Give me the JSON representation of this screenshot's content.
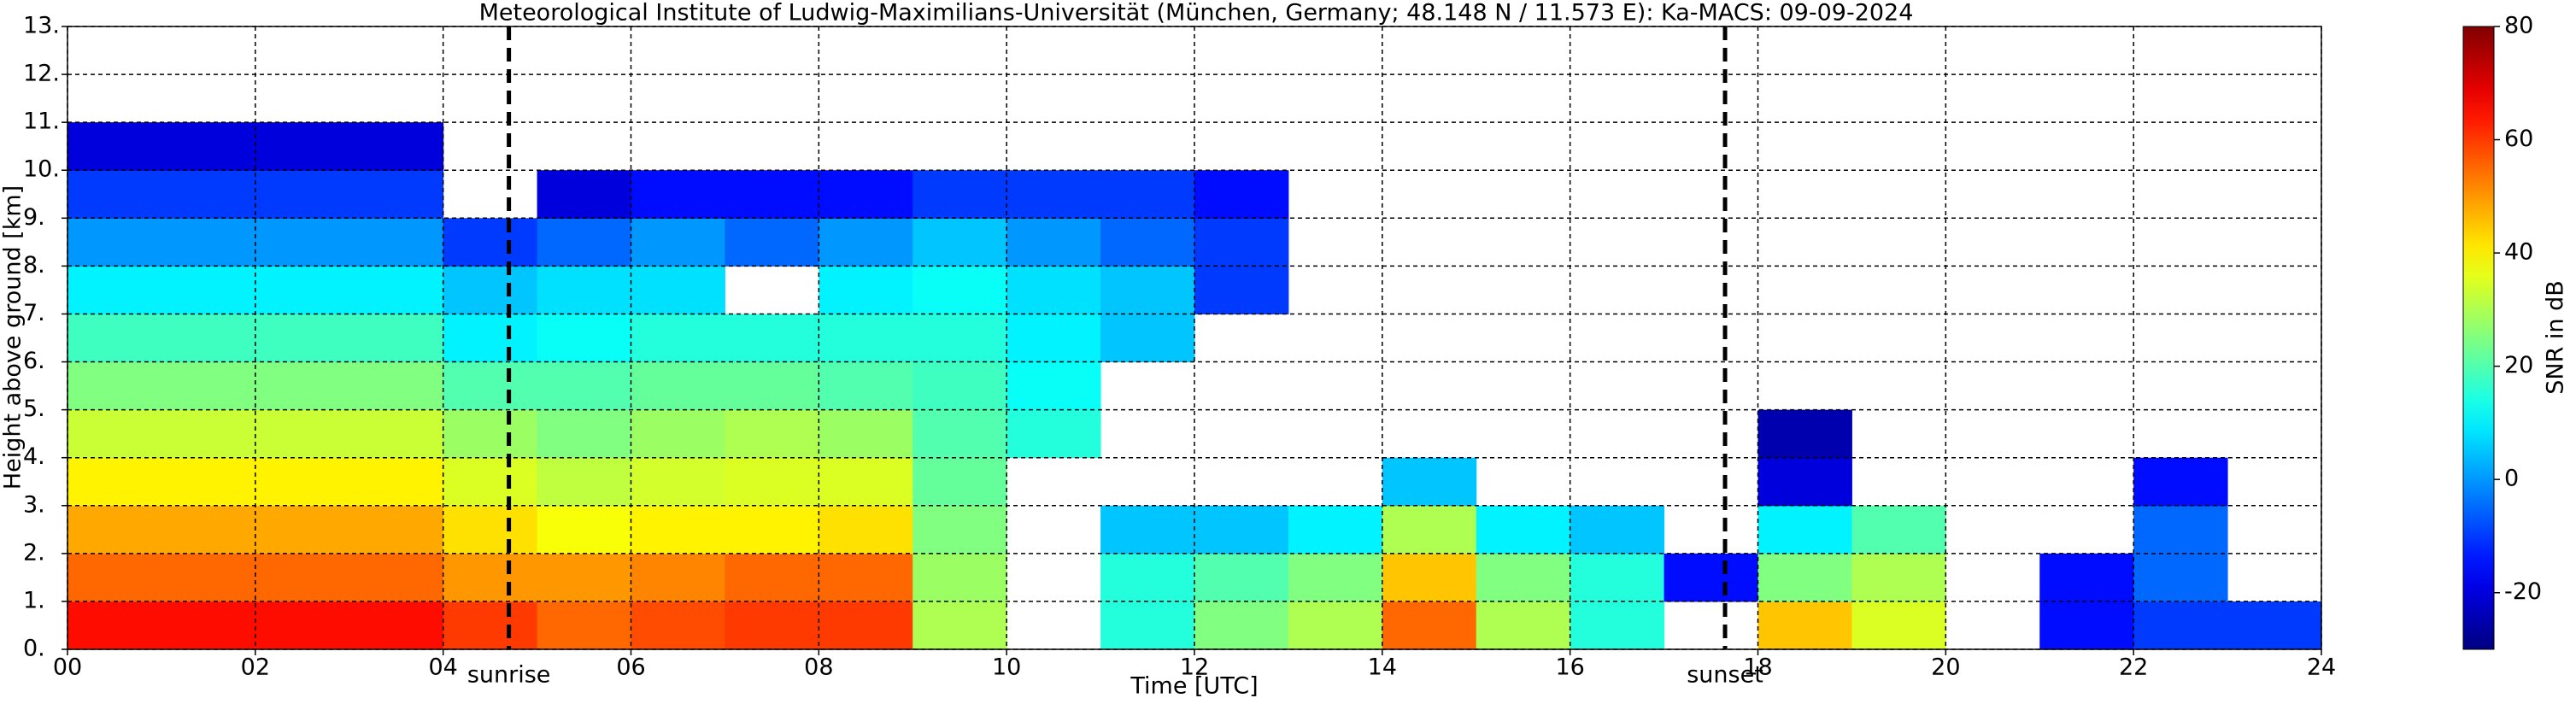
{
  "chart_data": {
    "type": "heatmap",
    "title": "Meteorological Institute of Ludwig-Maximilians-Universität (München, Germany; 48.148 N / 11.573 E):    Ka-MACS: 09-09-2024",
    "x_label": "Time [UTC]",
    "y_label": "Height above ground [km]",
    "colorbar_label": "SNR in dB",
    "colormap": "jet",
    "grid": true,
    "xbins": [
      0,
      1,
      2,
      3,
      4,
      5,
      6,
      7,
      8,
      9,
      10,
      11,
      12,
      13,
      14,
      15,
      16,
      17,
      18,
      19,
      20,
      21,
      22,
      23,
      24
    ],
    "ybins": [
      0,
      1,
      2,
      3,
      4,
      5,
      6,
      7,
      8,
      9,
      10,
      11,
      12,
      13
    ],
    "values": [
      [
        65,
        55,
        48,
        40,
        33,
        25,
        18,
        10,
        0,
        -10,
        -20,
        null,
        null
      ],
      [
        65,
        55,
        48,
        40,
        33,
        25,
        18,
        10,
        0,
        -10,
        -20,
        null,
        null
      ],
      [
        65,
        55,
        48,
        40,
        33,
        25,
        18,
        10,
        0,
        -10,
        -20,
        null,
        null
      ],
      [
        65,
        55,
        48,
        40,
        33,
        25,
        18,
        10,
        0,
        -10,
        -20,
        null,
        null
      ],
      [
        60,
        50,
        42,
        35,
        28,
        20,
        10,
        5,
        -10,
        null,
        null,
        null,
        null
      ],
      [
        55,
        50,
        38,
        32,
        25,
        20,
        12,
        8,
        -5,
        -20,
        null,
        null,
        null
      ],
      [
        58,
        52,
        40,
        34,
        28,
        22,
        15,
        8,
        0,
        -15,
        null,
        null,
        null
      ],
      [
        60,
        55,
        40,
        35,
        30,
        22,
        15,
        null,
        -5,
        -15,
        null,
        null,
        null
      ],
      [
        60,
        55,
        42,
        35,
        28,
        20,
        15,
        10,
        0,
        -15,
        null,
        null,
        null
      ],
      [
        30,
        28,
        25,
        22,
        20,
        18,
        15,
        12,
        5,
        -10,
        null,
        null,
        null
      ],
      [
        null,
        null,
        null,
        null,
        15,
        12,
        10,
        8,
        0,
        -10,
        null,
        null,
        null
      ],
      [
        15,
        15,
        5,
        null,
        null,
        null,
        5,
        5,
        -5,
        -10,
        null,
        null,
        null
      ],
      [
        25,
        20,
        5,
        null,
        null,
        null,
        null,
        -10,
        -10,
        -15,
        null,
        null,
        null
      ],
      [
        30,
        25,
        10,
        null,
        null,
        null,
        null,
        null,
        null,
        null,
        null,
        null,
        null
      ],
      [
        55,
        45,
        30,
        5,
        null,
        null,
        null,
        null,
        null,
        null,
        null,
        null,
        null
      ],
      [
        30,
        25,
        10,
        null,
        null,
        null,
        null,
        null,
        null,
        null,
        null,
        null,
        null
      ],
      [
        15,
        15,
        5,
        null,
        null,
        null,
        null,
        null,
        null,
        null,
        null,
        null,
        null
      ],
      [
        null,
        -15,
        null,
        null,
        null,
        null,
        null,
        null,
        null,
        null,
        null,
        null,
        null
      ],
      [
        45,
        25,
        10,
        -20,
        -25,
        null,
        null,
        null,
        null,
        null,
        null,
        null,
        null
      ],
      [
        35,
        30,
        20,
        null,
        null,
        null,
        null,
        null,
        null,
        null,
        null,
        null,
        null
      ],
      [
        null,
        null,
        null,
        null,
        null,
        null,
        null,
        null,
        null,
        null,
        null,
        null,
        null
      ],
      [
        -15,
        -15,
        null,
        null,
        null,
        null,
        null,
        null,
        null,
        null,
        null,
        null,
        null
      ],
      [
        -10,
        -5,
        -5,
        -15,
        null,
        null,
        null,
        null,
        null,
        null,
        null,
        null,
        null
      ],
      [
        -10,
        null,
        null,
        null,
        null,
        null,
        null,
        null,
        null,
        null,
        null,
        null,
        null
      ]
    ],
    "xlim": [
      0,
      24
    ],
    "ylim": [
      0,
      13
    ],
    "clim": [
      -30,
      80
    ],
    "xticks": [
      {
        "value": 0,
        "label": "00"
      },
      {
        "value": 2,
        "label": "02"
      },
      {
        "value": 4,
        "label": "04"
      },
      {
        "value": 6,
        "label": "06"
      },
      {
        "value": 8,
        "label": "08"
      },
      10,
      12,
      14,
      16,
      18,
      20,
      22,
      24
    ],
    "yticks": [
      {
        "value": 0,
        "label": "0."
      },
      {
        "value": 1,
        "label": "1."
      },
      {
        "value": 2,
        "label": "2."
      },
      {
        "value": 3,
        "label": "3."
      },
      {
        "value": 4,
        "label": "4."
      },
      {
        "value": 5,
        "label": "5."
      },
      {
        "value": 6,
        "label": "6."
      },
      {
        "value": 7,
        "label": "7."
      },
      {
        "value": 8,
        "label": "8."
      },
      {
        "value": 9,
        "label": "9."
      },
      {
        "value": 10,
        "label": "10."
      },
      {
        "value": 11,
        "label": "11."
      },
      {
        "value": 12,
        "label": "12."
      },
      {
        "value": 13,
        "label": "13."
      }
    ],
    "cticks": [
      -20,
      0,
      20,
      40,
      60,
      80
    ],
    "annotations": [
      {
        "label": "sunrise",
        "x": 4.7
      },
      {
        "label": "sunset",
        "x": 17.65
      }
    ]
  }
}
